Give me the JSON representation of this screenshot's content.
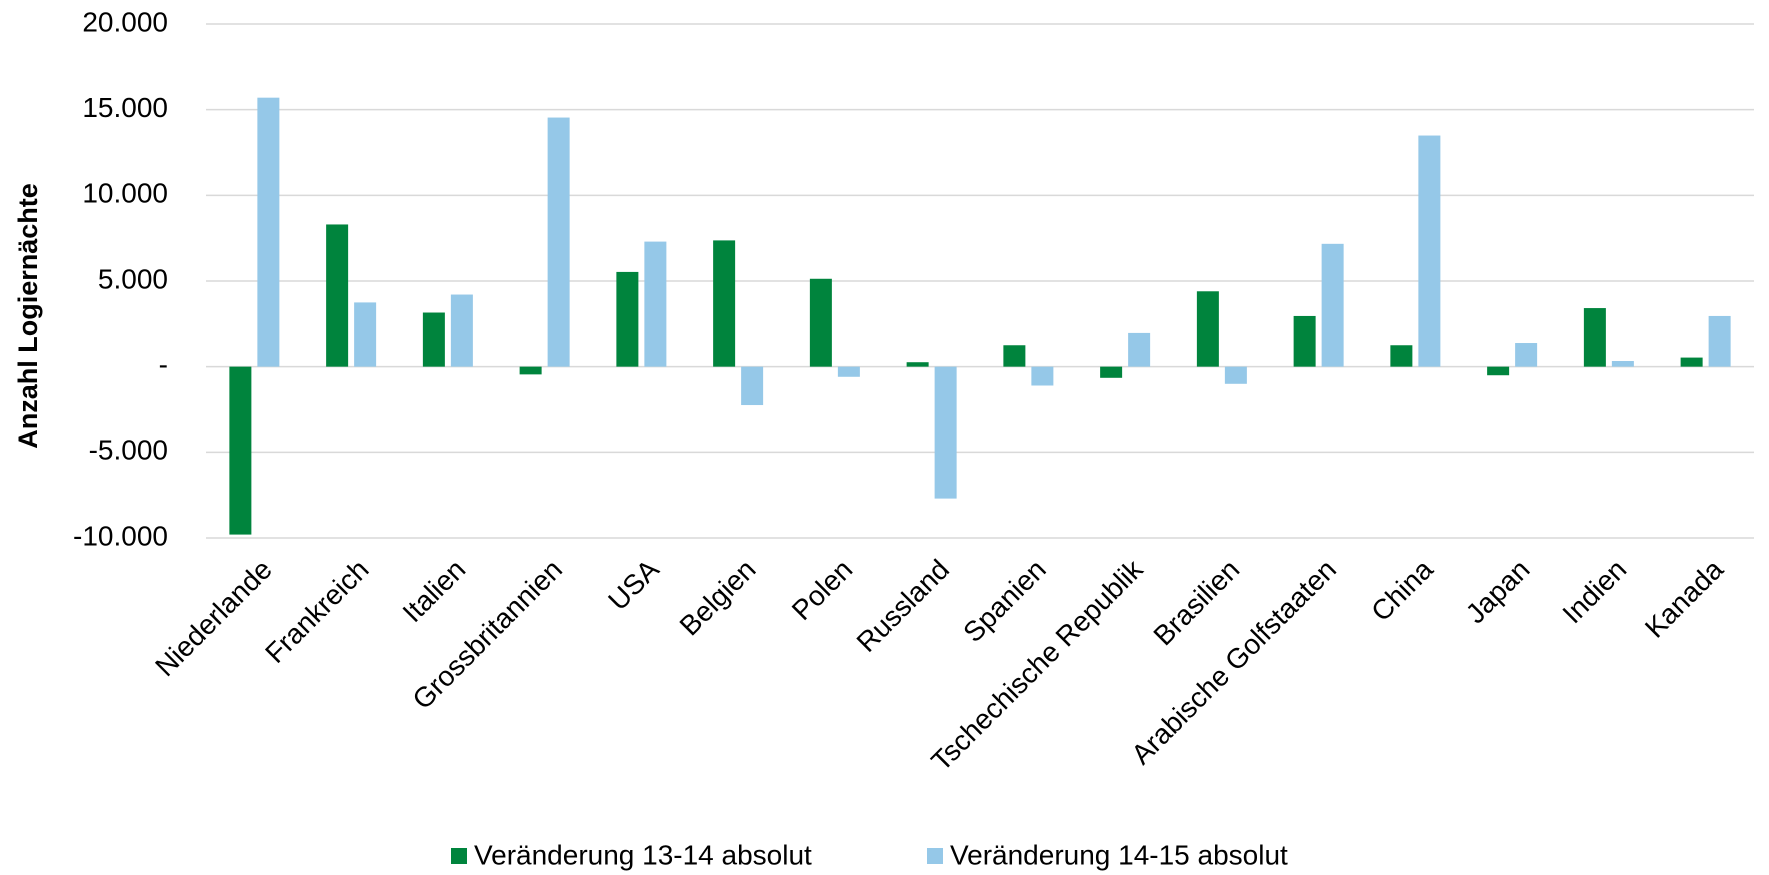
{
  "chart_data": {
    "type": "bar",
    "y_label": "Anzahl Logiernächte",
    "categories": [
      "Niederlande",
      "Frankreich",
      "Italien",
      "Grossbritannien",
      "USA",
      "Belgien",
      "Polen",
      "Russland",
      "Spanien",
      "Tschechische Republik",
      "Brasilien",
      "Arabische Golfstaaten",
      "China",
      "Japan",
      "Indien",
      "Kanada"
    ],
    "series": [
      {
        "name": "Veränderung 13-14 absolut",
        "color": "#00843d",
        "values": [
          -9800,
          8300,
          3160,
          -450,
          5530,
          7370,
          5130,
          260,
          1250,
          -650,
          4400,
          2960,
          1250,
          -500,
          3420,
          530
        ]
      },
      {
        "name": "Veränderung 14-15 absolut",
        "color": "#95c8e8",
        "values": [
          15700,
          3750,
          4210,
          14540,
          7300,
          -2240,
          -590,
          -7700,
          -1100,
          1970,
          -1000,
          7170,
          13490,
          1380,
          330,
          2960
        ]
      }
    ],
    "ylim": [
      -10000,
      20000
    ],
    "yticks": [
      {
        "value": -10000,
        "label": "-10.000"
      },
      {
        "value": -5000,
        "label": "-5.000"
      },
      {
        "value": 0,
        "label": "-"
      },
      {
        "value": 5000,
        "label": "5.000"
      },
      {
        "value": 10000,
        "label": "10.000"
      },
      {
        "value": 15000,
        "label": "15.000"
      },
      {
        "value": 20000,
        "label": "20.000"
      }
    ],
    "grid": true
  }
}
